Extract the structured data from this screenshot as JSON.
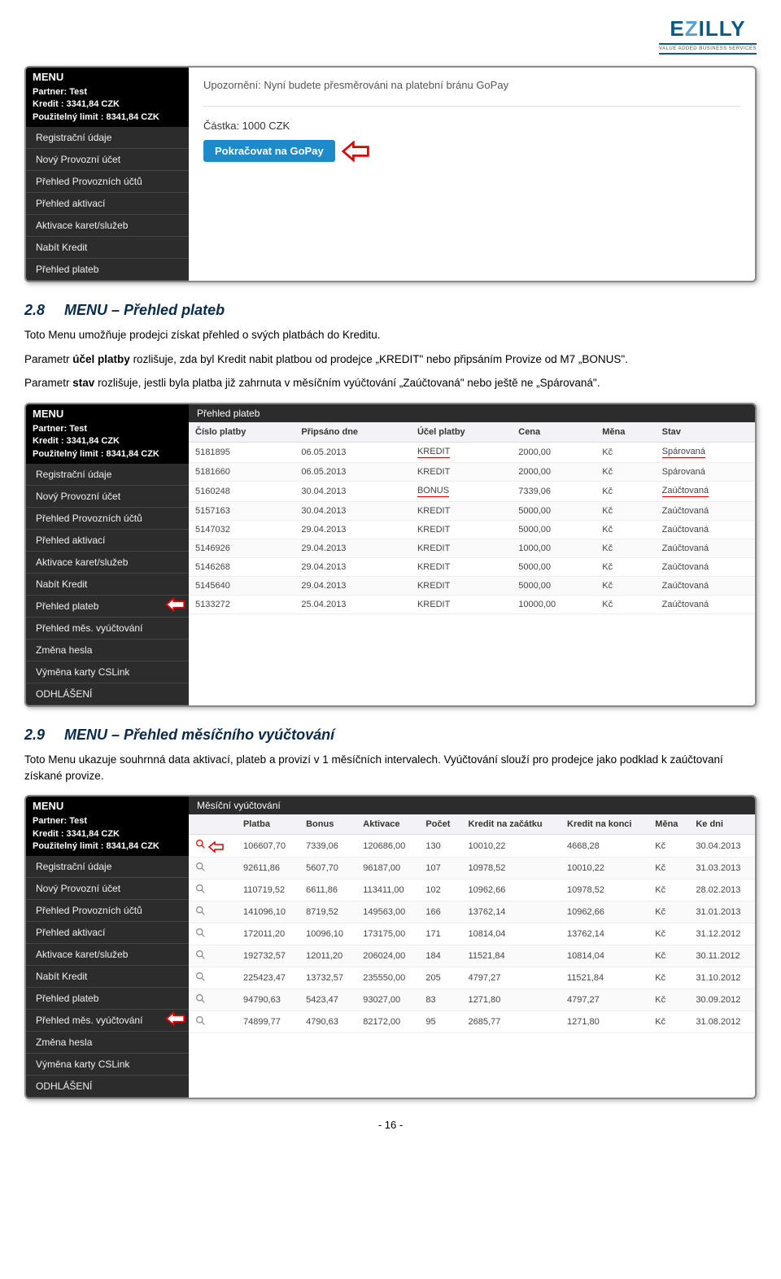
{
  "logo": {
    "text": "EZILLY",
    "tagline": "VALUE ADDED BUSINESS SERVICES"
  },
  "shot1": {
    "menu_title": "MENU",
    "partner": "Partner: Test",
    "kredit": "Kredit : 3341,84 CZK",
    "limit": "Použitelný limit : 8341,84 CZK",
    "items": [
      "Registrační údaje",
      "Nový Provozní účet",
      "Přehled Provozních účtů",
      "Přehled aktivací",
      "Aktivace karet/služeb",
      "Nabít Kredit",
      "Přehled plateb"
    ],
    "notice": "Upozornění: Nyní budete přesměrováni na platební bránu GoPay",
    "amount_label": "Částka:  1000  CZK",
    "button": "Pokračovat na GoPay"
  },
  "section28": {
    "num": "2.8",
    "title": "MENU – Přehled plateb",
    "p1a": "Toto Menu umožňuje prodejci získat přehled o svých platbách do Kreditu.",
    "p1b": "Parametr ",
    "p1b_bold": "účel platby",
    "p1c": " rozlišuje, zda byl Kredit nabit platbou od prodejce „KREDIT\" nebo připsáním Provize od M7 „BONUS\".",
    "p1d": "Parametr ",
    "p1d_bold": "stav",
    "p1e": " rozlišuje, jestli byla platba již zahrnuta v měsíčním vyúčtování „Zaúčtovaná\" nebo ještě ne „Spárovaná\"."
  },
  "shot2": {
    "menu_title": "MENU",
    "partner": "Partner: Test",
    "kredit": "Kredit : 3341,84 CZK",
    "limit": "Použitelný limit : 8341,84 CZK",
    "panel_title": "Přehled plateb",
    "items": [
      "Registrační údaje",
      "Nový Provozní účet",
      "Přehled Provozních účtů",
      "Přehled aktivací",
      "Aktivace karet/služeb",
      "Nabít Kredit",
      "Přehled plateb",
      "Přehled měs. vyúčtování",
      "Změna hesla",
      "Výměna karty CSLink",
      "ODHLÁŠENÍ"
    ],
    "arrow_index": 6,
    "cols": [
      "Číslo platby",
      "Připsáno dne",
      "Účel platby",
      "Cena",
      "Měna",
      "Stav"
    ],
    "rows": [
      [
        "5181895",
        "06.05.2013",
        "KREDIT",
        "2000,00",
        "Kč",
        "Spárovaná"
      ],
      [
        "5181660",
        "06.05.2013",
        "KREDIT",
        "2000,00",
        "Kč",
        "Spárovaná"
      ],
      [
        "5160248",
        "30.04.2013",
        "BONUS",
        "7339,06",
        "Kč",
        "Zaúčtovaná"
      ],
      [
        "5157163",
        "30.04.2013",
        "KREDIT",
        "5000,00",
        "Kč",
        "Zaúčtovaná"
      ],
      [
        "5147032",
        "29.04.2013",
        "KREDIT",
        "5000,00",
        "Kč",
        "Zaúčtovaná"
      ],
      [
        "5146926",
        "29.04.2013",
        "KREDIT",
        "1000,00",
        "Kč",
        "Zaúčtovaná"
      ],
      [
        "5146268",
        "29.04.2013",
        "KREDIT",
        "5000,00",
        "Kč",
        "Zaúčtovaná"
      ],
      [
        "5145640",
        "29.04.2013",
        "KREDIT",
        "5000,00",
        "Kč",
        "Zaúčtovaná"
      ],
      [
        "5133272",
        "25.04.2013",
        "KREDIT",
        "10000,00",
        "Kč",
        "Zaúčtovaná"
      ]
    ],
    "underline_cells": [
      [
        0,
        2
      ],
      [
        0,
        5
      ],
      [
        2,
        2
      ],
      [
        2,
        5
      ]
    ]
  },
  "section29": {
    "num": "2.9",
    "title": "MENU – Přehled měsíčního vyúčtování",
    "p1": "Toto Menu ukazuje souhrnná data aktivací, plateb a provizí v 1 měsíčních intervalech. Vyúčtování slouží pro prodejce jako podklad k zaúčtovaní získané provize."
  },
  "shot3": {
    "menu_title": "MENU",
    "partner": "Partner: Test",
    "kredit": "Kredit : 3341,84 CZK",
    "limit": "Použitelný limit : 8341,84 CZK",
    "panel_title": "Měsíční vyúčtování",
    "items": [
      "Registrační údaje",
      "Nový Provozní účet",
      "Přehled Provozních účtů",
      "Přehled aktivací",
      "Aktivace karet/služeb",
      "Nabít Kredit",
      "Přehled plateb",
      "Přehled měs. vyúčtování",
      "Změna hesla",
      "Výměna karty CSLink",
      "ODHLÁŠENÍ"
    ],
    "arrow_index": 7,
    "cols": [
      "",
      "Platba",
      "Bonus",
      "Aktivace",
      "Počet",
      "Kredit na začátku",
      "Kredit na konci",
      "Měna",
      "Ke dni"
    ],
    "rows": [
      [
        "",
        "106607,70",
        "7339,06",
        "120686,00",
        "130",
        "10010,22",
        "4668,28",
        "Kč",
        "30.04.2013"
      ],
      [
        "",
        "92611,86",
        "5607,70",
        "96187,00",
        "107",
        "10978,52",
        "10010,22",
        "Kč",
        "31.03.2013"
      ],
      [
        "",
        "110719,52",
        "6611,86",
        "113411,00",
        "102",
        "10962,66",
        "10978,52",
        "Kč",
        "28.02.2013"
      ],
      [
        "",
        "141096,10",
        "8719,52",
        "149563,00",
        "166",
        "13762,14",
        "10962,66",
        "Kč",
        "31.01.2013"
      ],
      [
        "",
        "172011,20",
        "10096,10",
        "173175,00",
        "171",
        "10814,04",
        "13762,14",
        "Kč",
        "31.12.2012"
      ],
      [
        "",
        "192732,57",
        "12011,20",
        "206024,00",
        "184",
        "11521,84",
        "10814,04",
        "Kč",
        "30.11.2012"
      ],
      [
        "",
        "225423,47",
        "13732,57",
        "235550,00",
        "205",
        "4797,27",
        "11521,84",
        "Kč",
        "31.10.2012"
      ],
      [
        "",
        "94790,63",
        "5423,47",
        "93027,00",
        "83",
        "1271,80",
        "4797,27",
        "Kč",
        "30.09.2012"
      ],
      [
        "",
        "74899,77",
        "4790,63",
        "82172,00",
        "95",
        "2685,77",
        "1271,80",
        "Kč",
        "31.08.2012"
      ]
    ],
    "red_magnify_row": 0
  },
  "page_number": "- 16 -"
}
